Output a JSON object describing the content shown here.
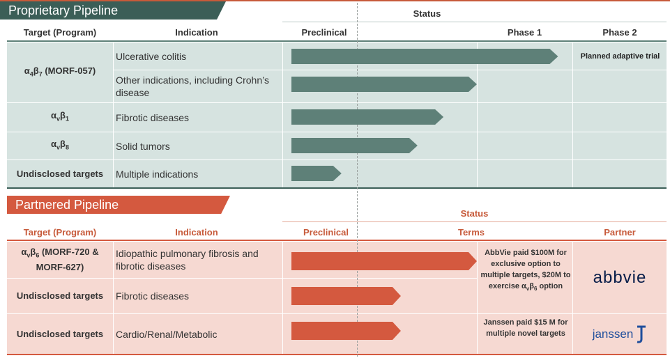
{
  "colors": {
    "proprietary": "#5e8078",
    "proprietary_bg": "#d6e3e0",
    "proprietary_banner": "#3b5e57",
    "partnered": "#d4593f",
    "partnered_bg": "#f6d9d2",
    "header_orange": "#c75a3a"
  },
  "proprietary": {
    "banner": "Proprietary Pipeline",
    "status_label": "Status",
    "headers": {
      "target": "Target (Program)",
      "indication": "Indication",
      "preclinical": "Preclinical",
      "phase1": "Phase 1",
      "phase2": "Phase 2"
    },
    "rows": [
      {
        "target": "α4β7 (MORF-057)",
        "indication": "Ulcerative colitis",
        "phase2_note": "Planned adaptive trial"
      },
      {
        "target": "",
        "indication": "Other indications, including Crohn’s disease",
        "phase2_note": ""
      },
      {
        "target": "αvβ1",
        "indication": "Fibrotic diseases",
        "phase2_note": ""
      },
      {
        "target": "αvβ8",
        "indication": "Solid tumors",
        "phase2_note": ""
      },
      {
        "target": "Undisclosed targets",
        "indication": "Multiple indications",
        "phase2_note": ""
      }
    ]
  },
  "partnered": {
    "banner": "Partnered Pipeline",
    "status_label": "Status",
    "headers": {
      "target": "Target (Program)",
      "indication": "Indication",
      "preclinical": "Preclinical",
      "terms": "Terms",
      "partner": "Partner"
    },
    "rows": [
      {
        "target": "αvβ6 (MORF-720 & MORF-627)",
        "indication": "Idiopathic pulmonary fibrosis and fibrotic diseases"
      },
      {
        "target": "Undisclosed targets",
        "indication": "Fibrotic diseases"
      },
      {
        "target": "Undisclosed targets",
        "indication": "Cardio/Renal/Metabolic"
      }
    ],
    "terms_abbvie": "AbbVie paid $100M for exclusive option to multiple targets, $20M to exercise αvβ6 option",
    "terms_janssen": "Janssen paid $15 M for multiple novel targets",
    "partner_abbvie": "abbvie",
    "partner_janssen": "janssen"
  },
  "chart_data": [
    {
      "type": "bar",
      "title": "Proprietary Pipeline",
      "orientation": "horizontal",
      "stage_scale": [
        "Preclinical",
        "Phase 1",
        "Phase 2"
      ],
      "categories": [
        "Ulcerative colitis",
        "Other indications, including Crohn’s disease",
        "Fibrotic diseases",
        "Solid tumors",
        "Multiple indications"
      ],
      "values": [
        1.85,
        1.0,
        0.82,
        0.68,
        0.27
      ]
    },
    {
      "type": "bar",
      "title": "Partnered Pipeline",
      "orientation": "horizontal",
      "stage_scale": [
        "Preclinical"
      ],
      "categories": [
        "Idiopathic pulmonary fibrosis and fibrotic diseases",
        "Fibrotic diseases",
        "Cardio/Renal/Metabolic"
      ],
      "values": [
        1.0,
        0.59,
        0.59
      ]
    }
  ]
}
